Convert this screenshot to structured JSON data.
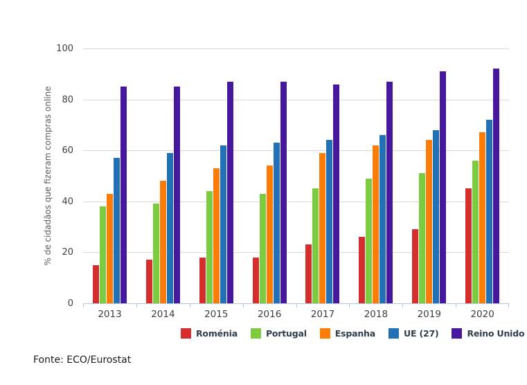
{
  "chart_data": {
    "type": "bar",
    "title": "",
    "categories": [
      "2013",
      "2014",
      "2015",
      "2016",
      "2017",
      "2018",
      "2019",
      "2020"
    ],
    "series": [
      {
        "name": "Roménia",
        "color": "#d42e2e",
        "values": [
          15,
          17,
          18,
          18,
          23,
          26,
          29,
          45
        ]
      },
      {
        "name": "Portugal",
        "color": "#7ccb40",
        "values": [
          38,
          39,
          44,
          43,
          45,
          49,
          51,
          56
        ]
      },
      {
        "name": "Espanha",
        "color": "#fb7d07",
        "values": [
          43,
          48,
          53,
          54,
          59,
          62,
          64,
          67
        ]
      },
      {
        "name": "UE (27)",
        "color": "#2270b5",
        "values": [
          57,
          59,
          62,
          63,
          64,
          66,
          68,
          72
        ]
      },
      {
        "name": "Reino Unido",
        "color": "#45189e",
        "values": [
          85,
          85,
          87,
          87,
          86,
          87,
          91,
          92
        ]
      }
    ],
    "xlabel": "",
    "ylabel": "% de cidadãos que fizeram compras online",
    "ylim": [
      0,
      100
    ],
    "ytick_step": 20,
    "yticks": [
      0,
      20,
      40,
      60,
      80,
      100
    ],
    "grid": true,
    "legend_position": "bottom"
  },
  "footer": {
    "source_label": "Fonte: ECO/Eurostat"
  },
  "palette": {
    "background": "#ffffff",
    "gridline": "#d8d8d8",
    "axis_line": "#b3c7d6",
    "tick_text": "#3d3d3d",
    "y_title_text": "#595959",
    "legend_text": "#2f3e4c",
    "footer_text": "#1c1c1c"
  }
}
